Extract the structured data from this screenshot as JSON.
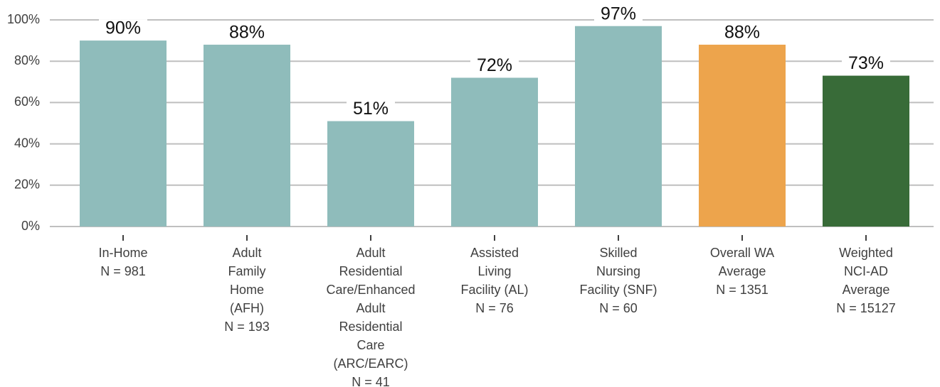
{
  "chart_data": {
    "type": "bar",
    "categories": [
      [
        "In-Home",
        "N = 981"
      ],
      [
        "Adult",
        "Family",
        "Home",
        "(AFH)",
        "N = 193"
      ],
      [
        "Adult",
        "Residential",
        "Care/Enhanced",
        "Adult",
        "Residential",
        "Care",
        "(ARC/EARC)",
        "N = 41"
      ],
      [
        "Assisted",
        "Living",
        "Facility (AL)",
        "N = 76"
      ],
      [
        "Skilled",
        "Nursing",
        "Facility (SNF)",
        "N = 60"
      ],
      [
        "Overall WA",
        "Average",
        "N = 1351"
      ],
      [
        "Weighted",
        "NCI-AD",
        "Average",
        "N = 15127"
      ]
    ],
    "values": [
      90,
      88,
      51,
      72,
      97,
      88,
      73
    ],
    "value_labels": [
      "90%",
      "88%",
      "51%",
      "72%",
      "97%",
      "88%",
      "73%"
    ],
    "colors": [
      "#8fbcbb",
      "#8fbcbb",
      "#8fbcbb",
      "#8fbcbb",
      "#8fbcbb",
      "#eda44c",
      "#386b38"
    ],
    "ylim": [
      0,
      100
    ],
    "yticks": [
      {
        "value": 0,
        "label": "0%"
      },
      {
        "value": 20,
        "label": "20%"
      },
      {
        "value": 40,
        "label": "40%"
      },
      {
        "value": 60,
        "label": "60%"
      },
      {
        "value": 80,
        "label": "80%"
      },
      {
        "value": 100,
        "label": "100%"
      }
    ],
    "grid": true
  }
}
